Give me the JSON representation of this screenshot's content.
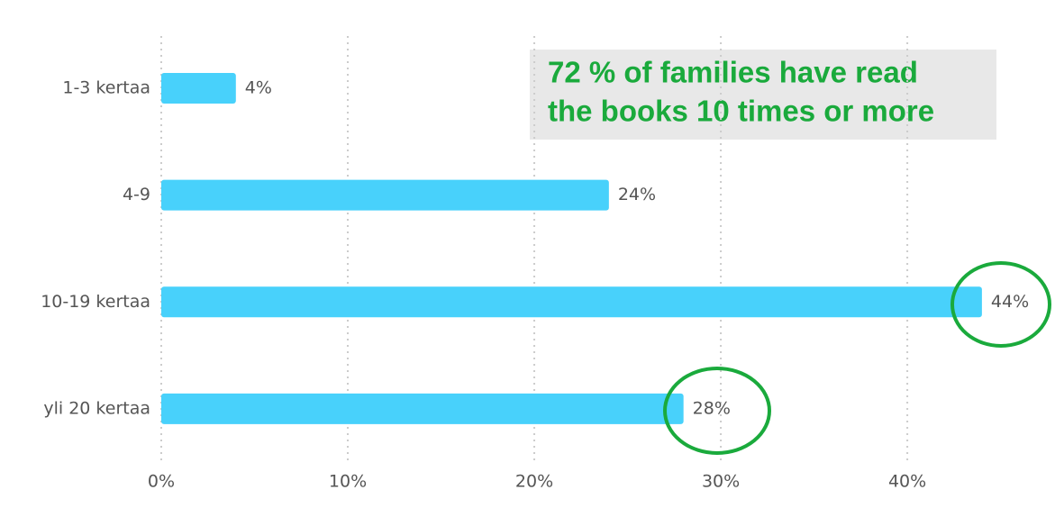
{
  "chart_data": {
    "type": "bar",
    "orientation": "horizontal",
    "categories": [
      "1-3 kertaa",
      "4-9",
      "10-19 kertaa",
      "yli 20 kertaa"
    ],
    "values": [
      4,
      24,
      44,
      28
    ],
    "value_labels": [
      "4%",
      "24%",
      "44%",
      "28%"
    ],
    "color": "#48d1fb",
    "xlim": [
      0,
      47
    ],
    "xticks": [
      {
        "value": 0,
        "label": "0%"
      },
      {
        "value": 10,
        "label": "10%"
      },
      {
        "value": 20,
        "label": "20%"
      },
      {
        "value": 30,
        "label": "30%"
      },
      {
        "value": 40,
        "label": "40%"
      }
    ],
    "grid": true,
    "annotation": [
      "72 % of families have read",
      "the books 10 times or more"
    ]
  }
}
